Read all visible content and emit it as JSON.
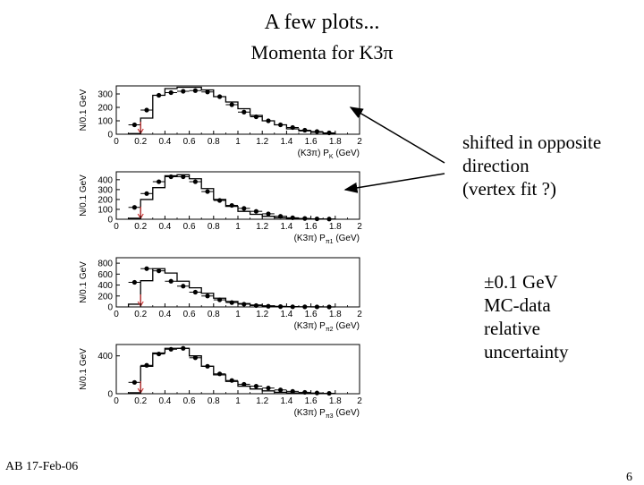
{
  "title": "A few plots...",
  "subtitle": "Momenta for K3π",
  "annotation_shift": [
    "shifted in opposite",
    "direction",
    "(vertex fit ?)"
  ],
  "annotation_uncertainty": [
    "±0.1 GeV",
    "MC-data",
    "relative",
    "uncertainty"
  ],
  "footer_left": "AB 17-Feb-06",
  "footer_right": "6",
  "colors": {
    "marker": "#cc3333",
    "line": "#000000"
  },
  "chart_data": [
    {
      "type": "histogram",
      "ylabel": "N/0.1 GeV",
      "xlabel_base": "(K3π)  P",
      "xlabel_sub": "K",
      "xlabel_unit": " (GeV)",
      "xlim": [
        0,
        2
      ],
      "ylim": [
        0,
        360
      ],
      "x_ticks": [
        "0",
        "0.2",
        "0.4",
        "0.6",
        "0.8",
        "1",
        "1.2",
        "1.4",
        "1.6",
        "1.8",
        "2"
      ],
      "y_ticks": [
        0,
        100,
        200,
        300
      ],
      "marker_x": 0.2,
      "bin_edges": [
        0.1,
        0.2,
        0.3,
        0.4,
        0.5,
        0.6,
        0.7,
        0.8,
        0.9,
        1.0,
        1.1,
        1.2,
        1.3,
        1.4,
        1.5,
        1.6,
        1.7,
        1.8
      ],
      "mc": [
        5,
        120,
        290,
        340,
        350,
        350,
        330,
        280,
        240,
        190,
        140,
        100,
        70,
        40,
        25,
        15,
        8
      ],
      "data_x": [
        0.15,
        0.25,
        0.35,
        0.45,
        0.55,
        0.65,
        0.75,
        0.85,
        0.95,
        1.05,
        1.15,
        1.25,
        1.35,
        1.45,
        1.55,
        1.65,
        1.75
      ],
      "data_y": [
        70,
        180,
        290,
        310,
        320,
        325,
        315,
        280,
        220,
        165,
        130,
        100,
        70,
        50,
        30,
        20,
        10
      ]
    },
    {
      "type": "histogram",
      "ylabel": "N/0.1 GeV",
      "xlabel_base": "(K3π)  P",
      "xlabel_sub": "π1",
      "xlabel_unit": " (GeV)",
      "xlim": [
        0,
        2
      ],
      "ylim": [
        0,
        480
      ],
      "x_ticks": [
        "0",
        "0.2",
        "0.4",
        "0.6",
        "0.8",
        "1",
        "1.2",
        "1.4",
        "1.6",
        "1.8",
        "2"
      ],
      "y_ticks": [
        0,
        100,
        200,
        300,
        400
      ],
      "marker_x": 0.2,
      "bin_edges": [
        0.1,
        0.2,
        0.3,
        0.4,
        0.5,
        0.6,
        0.7,
        0.8,
        0.9,
        1.0,
        1.1,
        1.2,
        1.3,
        1.4,
        1.5,
        1.6,
        1.7,
        1.8
      ],
      "mc": [
        10,
        200,
        320,
        440,
        450,
        410,
        310,
        200,
        130,
        80,
        50,
        30,
        15,
        8,
        4,
        2,
        1
      ],
      "data_x": [
        0.15,
        0.25,
        0.35,
        0.45,
        0.55,
        0.65,
        0.75,
        0.85,
        0.95,
        1.05,
        1.15,
        1.25,
        1.35,
        1.45,
        1.55,
        1.65,
        1.75
      ],
      "data_y": [
        120,
        260,
        380,
        430,
        430,
        380,
        280,
        190,
        140,
        110,
        80,
        55,
        30,
        15,
        8,
        4,
        2
      ]
    },
    {
      "type": "histogram",
      "ylabel": "N/0.1 GeV",
      "xlabel_base": "(K3π)  P",
      "xlabel_sub": "π2",
      "xlabel_unit": " (GeV)",
      "xlim": [
        0,
        2
      ],
      "ylim": [
        0,
        900
      ],
      "x_ticks": [
        "0",
        "0.2",
        "0.4",
        "0.6",
        "0.8",
        "1",
        "1.2",
        "1.4",
        "1.6",
        "1.8",
        "2"
      ],
      "y_ticks": [
        0,
        200,
        400,
        600,
        800
      ],
      "marker_x": 0.2,
      "bin_edges": [
        0.1,
        0.2,
        0.3,
        0.4,
        0.5,
        0.6,
        0.7,
        0.8,
        0.9,
        1.0,
        1.1,
        1.2,
        1.3,
        1.4,
        1.5,
        1.6,
        1.7,
        1.8
      ],
      "mc": [
        50,
        480,
        700,
        620,
        470,
        350,
        250,
        160,
        100,
        60,
        35,
        20,
        10,
        5,
        2,
        1,
        0
      ],
      "data_x": [
        0.15,
        0.25,
        0.35,
        0.45,
        0.55,
        0.65,
        0.75,
        0.85,
        0.95,
        1.05,
        1.15,
        1.25,
        1.35,
        1.45,
        1.55,
        1.65,
        1.75
      ],
      "data_y": [
        450,
        700,
        660,
        470,
        380,
        270,
        200,
        130,
        80,
        50,
        25,
        12,
        6,
        3,
        2,
        1,
        0
      ]
    },
    {
      "type": "histogram",
      "ylabel": "N/0.1 GeV",
      "xlabel_base": "(K3π)  P",
      "xlabel_sub": "π3",
      "xlabel_unit": " (GeV)",
      "xlim": [
        0,
        2
      ],
      "ylim": [
        0,
        520
      ],
      "x_ticks": [
        "0",
        "0.2",
        "0.4",
        "0.6",
        "0.8",
        "1",
        "1.2",
        "1.4",
        "1.6",
        "1.8",
        "2"
      ],
      "y_ticks": [
        0,
        400
      ],
      "marker_x": 0.2,
      "bin_edges": [
        0.1,
        0.2,
        0.3,
        0.4,
        0.5,
        0.6,
        0.7,
        0.8,
        0.9,
        1.0,
        1.1,
        1.2,
        1.3,
        1.4,
        1.5,
        1.6,
        1.7,
        1.8
      ],
      "mc": [
        10,
        290,
        430,
        480,
        480,
        400,
        290,
        200,
        130,
        80,
        50,
        30,
        15,
        8,
        4,
        2,
        1
      ],
      "data_x": [
        0.15,
        0.25,
        0.35,
        0.45,
        0.55,
        0.65,
        0.75,
        0.85,
        0.95,
        1.05,
        1.15,
        1.25,
        1.35,
        1.45,
        1.55,
        1.65,
        1.75
      ],
      "data_y": [
        120,
        300,
        420,
        470,
        480,
        380,
        290,
        210,
        140,
        100,
        80,
        60,
        40,
        25,
        15,
        8,
        4
      ]
    }
  ]
}
